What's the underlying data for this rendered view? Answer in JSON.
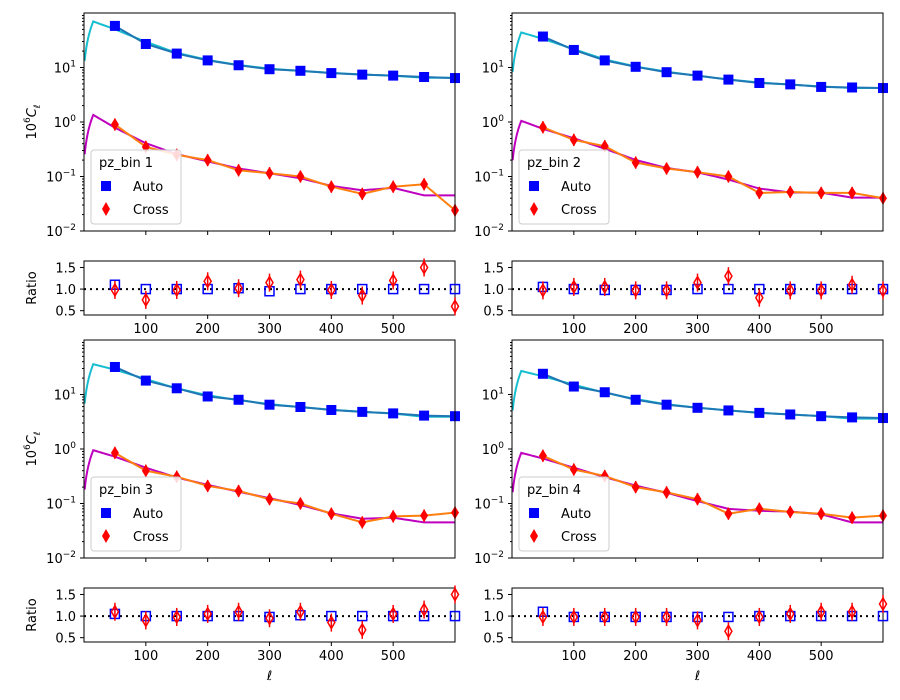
{
  "figure": {
    "shared_xlabel": "ℓ",
    "main_ylabel_base": "10",
    "main_ylabel_exp": "6",
    "main_ylabel_sym": "C",
    "main_ylabel_sub": "ℓ",
    "ratio_ylabel": "Ratio",
    "colors": {
      "auto_marker": "#0000ff",
      "cross_marker": "#ff0000",
      "auto_data_line": "#1f77b4",
      "cross_data_line": "#ff7f0e",
      "auto_theory": "#17becf",
      "cross_theory": "#bf00bf"
    }
  },
  "chart_data": [
    {
      "type": "line",
      "panel": "pz_bin 1",
      "legend": {
        "title": "pz_bin 1",
        "entries": [
          "Auto",
          "Cross"
        ],
        "placement": "lower-left"
      },
      "x": [
        50,
        100,
        150,
        200,
        250,
        300,
        350,
        400,
        450,
        500,
        550,
        600
      ],
      "xlim": [
        0,
        600
      ],
      "xticks": [
        100,
        200,
        300,
        400,
        500
      ],
      "ylim_log": [
        0.01,
        100
      ],
      "yticks": [
        {
          "v": 10,
          "e": "1"
        },
        {
          "v": 1,
          "e": "0"
        },
        {
          "v": 0.1,
          "e": "−1"
        },
        {
          "v": 0.01,
          "e": "−2"
        }
      ],
      "series": [
        {
          "name": "Auto",
          "values": [
            58,
            27,
            18,
            13.5,
            11,
            9.3,
            8.7,
            7.9,
            7.4,
            7.1,
            6.7,
            6.4
          ]
        },
        {
          "name": "Cross",
          "values": [
            0.9,
            0.35,
            0.25,
            0.2,
            0.13,
            0.115,
            0.1,
            0.065,
            0.048,
            0.065,
            0.072,
            0.024
          ]
        }
      ],
      "theory": [
        {
          "name": "Auto model",
          "peak": 70,
          "peak_x": 15,
          "end": 6.5
        },
        {
          "name": "Cross model",
          "peak": 1.35,
          "peak_x": 15,
          "end": 0.045
        }
      ],
      "ratio": {
        "ylim": [
          0.4,
          1.65
        ],
        "yticks": [
          "0.5",
          "1.0",
          "1.5"
        ],
        "auto": [
          1.1,
          1.0,
          1.0,
          1.0,
          1.02,
          0.95,
          1.0,
          1.0,
          1.0,
          1.0,
          1.0,
          1.0
        ],
        "cross": [
          0.98,
          0.75,
          0.98,
          1.18,
          1.02,
          1.15,
          1.22,
          0.98,
          0.85,
          1.2,
          1.5,
          0.6
        ]
      }
    },
    {
      "type": "line",
      "panel": "pz_bin 2",
      "legend": {
        "title": "pz_bin 2",
        "entries": [
          "Auto",
          "Cross"
        ],
        "placement": "lower-left"
      },
      "x": [
        50,
        100,
        150,
        200,
        250,
        300,
        350,
        400,
        450,
        500,
        550,
        600
      ],
      "xlim": [
        0,
        600
      ],
      "xticks": [
        100,
        200,
        300,
        400,
        500
      ],
      "ylim_log": [
        0.01,
        100
      ],
      "yticks": [
        {
          "v": 10,
          "e": "1"
        },
        {
          "v": 1,
          "e": "0"
        },
        {
          "v": 0.1,
          "e": "−1"
        },
        {
          "v": 0.01,
          "e": "−2"
        }
      ],
      "series": [
        {
          "name": "Auto",
          "values": [
            37,
            21,
            13.5,
            10.3,
            8.2,
            7.1,
            6.0,
            5.2,
            4.9,
            4.4,
            4.3,
            4.2
          ]
        },
        {
          "name": "Cross",
          "values": [
            0.8,
            0.47,
            0.36,
            0.18,
            0.14,
            0.12,
            0.1,
            0.05,
            0.052,
            0.05,
            0.05,
            0.04
          ]
        }
      ],
      "theory": [
        {
          "name": "Auto model",
          "peak": 44,
          "peak_x": 15,
          "end": 4.2
        },
        {
          "name": "Cross model",
          "peak": 1.05,
          "peak_x": 15,
          "end": 0.041
        }
      ],
      "ratio": {
        "ylim": [
          0.4,
          1.65
        ],
        "yticks": [
          "0.5",
          "1.0",
          "1.5"
        ],
        "auto": [
          1.05,
          1.0,
          0.98,
          0.98,
          0.98,
          1.0,
          1.0,
          1.0,
          1.0,
          1.0,
          1.0,
          1.0
        ],
        "cross": [
          0.97,
          1.05,
          1.05,
          0.97,
          0.97,
          1.15,
          1.3,
          0.8,
          0.97,
          0.97,
          1.1,
          0.97
        ]
      }
    },
    {
      "type": "line",
      "panel": "pz_bin 3",
      "legend": {
        "title": "pz_bin 3",
        "entries": [
          "Auto",
          "Cross"
        ],
        "placement": "lower-left"
      },
      "x": [
        50,
        100,
        150,
        200,
        250,
        300,
        350,
        400,
        450,
        500,
        550,
        600
      ],
      "xlim": [
        0,
        600
      ],
      "xticks": [
        100,
        200,
        300,
        400,
        500
      ],
      "ylim_log": [
        0.01,
        100
      ],
      "yticks": [
        {
          "v": 10,
          "e": "1"
        },
        {
          "v": 1,
          "e": "0"
        },
        {
          "v": 0.1,
          "e": "−1"
        },
        {
          "v": 0.01,
          "e": "−2"
        }
      ],
      "series": [
        {
          "name": "Auto",
          "values": [
            32,
            18,
            13,
            9.2,
            8.0,
            6.5,
            5.9,
            5.2,
            4.8,
            4.5,
            4.1,
            4.0
          ]
        },
        {
          "name": "Cross",
          "values": [
            0.85,
            0.4,
            0.31,
            0.21,
            0.17,
            0.12,
            0.1,
            0.065,
            0.045,
            0.058,
            0.06,
            0.068
          ]
        }
      ],
      "theory": [
        {
          "name": "Auto model",
          "peak": 36,
          "peak_x": 15,
          "end": 3.9
        },
        {
          "name": "Cross model",
          "peak": 0.95,
          "peak_x": 15,
          "end": 0.045
        }
      ],
      "ratio": {
        "ylim": [
          0.4,
          1.65
        ],
        "yticks": [
          "0.5",
          "1.0",
          "1.5"
        ],
        "auto": [
          1.05,
          1.0,
          1.0,
          1.0,
          1.0,
          0.98,
          1.02,
          1.0,
          1.0,
          1.0,
          1.0,
          1.0
        ],
        "cross": [
          1.1,
          0.9,
          0.98,
          1.05,
          1.1,
          0.95,
          1.1,
          0.85,
          0.68,
          1.05,
          1.15,
          1.5
        ]
      }
    },
    {
      "type": "line",
      "panel": "pz_bin 4",
      "legend": {
        "title": "pz_bin 4",
        "entries": [
          "Auto",
          "Cross"
        ],
        "placement": "lower-left"
      },
      "x": [
        50,
        100,
        150,
        200,
        250,
        300,
        350,
        400,
        450,
        500,
        550,
        600
      ],
      "xlim": [
        0,
        600
      ],
      "xticks": [
        100,
        200,
        300,
        400,
        500
      ],
      "ylim_log": [
        0.01,
        100
      ],
      "yticks": [
        {
          "v": 10,
          "e": "1"
        },
        {
          "v": 1,
          "e": "0"
        },
        {
          "v": 0.1,
          "e": "−1"
        },
        {
          "v": 0.01,
          "e": "−2"
        }
      ],
      "series": [
        {
          "name": "Auto",
          "values": [
            24,
            14,
            11,
            8.0,
            6.5,
            5.7,
            5.1,
            4.6,
            4.3,
            4.0,
            3.8,
            3.7
          ]
        },
        {
          "name": "Cross",
          "values": [
            0.75,
            0.42,
            0.32,
            0.2,
            0.16,
            0.12,
            0.065,
            0.08,
            0.07,
            0.065,
            0.055,
            0.06
          ]
        }
      ],
      "theory": [
        {
          "name": "Auto model",
          "peak": 27,
          "peak_x": 15,
          "end": 3.6
        },
        {
          "name": "Cross model",
          "peak": 0.85,
          "peak_x": 15,
          "end": 0.045
        }
      ],
      "ratio": {
        "ylim": [
          0.4,
          1.65
        ],
        "yticks": [
          "0.5",
          "1.0",
          "1.5"
        ],
        "auto": [
          1.1,
          0.98,
          0.98,
          0.98,
          0.98,
          0.98,
          0.98,
          1.0,
          1.0,
          1.0,
          1.0,
          1.0
        ],
        "cross": [
          0.98,
          0.98,
          0.98,
          0.98,
          0.98,
          0.9,
          0.65,
          0.98,
          1.05,
          1.1,
          1.1,
          1.28
        ]
      }
    }
  ]
}
